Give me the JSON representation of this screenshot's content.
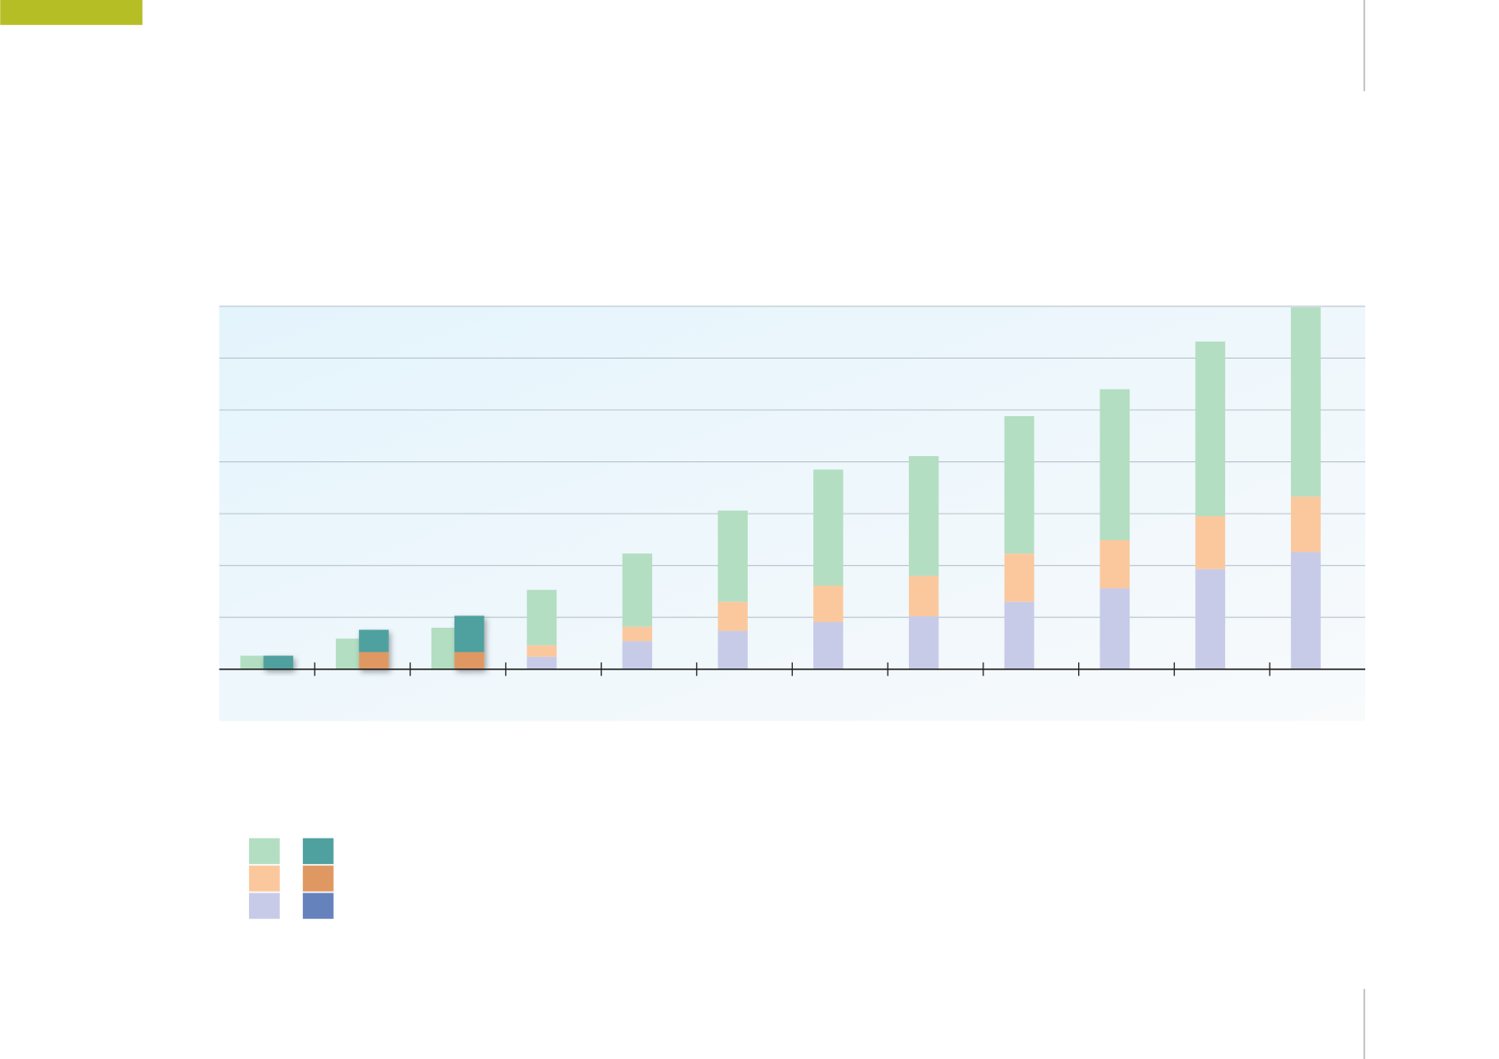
{
  "chart_data": {
    "type": "bar",
    "categories": [
      null,
      null,
      null,
      null,
      null,
      null,
      null,
      null,
      null,
      null,
      null,
      null
    ],
    "series": [
      {
        "color": "#c7cbe8",
        "values": [
          null,
          null,
          null,
          0.24,
          0.54,
          0.74,
          0.91,
          1.02,
          1.3,
          1.56,
          1.93,
          2.26
        ]
      },
      {
        "color": "#fbc89e",
        "values": [
          null,
          null,
          null,
          0.22,
          0.28,
          0.56,
          0.7,
          0.78,
          0.93,
          0.93,
          1.02,
          1.07
        ]
      },
      {
        "color": "#b3dec1",
        "values": [
          0.26,
          0.59,
          0.8,
          1.07,
          1.41,
          1.76,
          2.24,
          2.31,
          2.65,
          2.91,
          3.37,
          3.65
        ]
      },
      {
        "color": "#6682bd",
        "values": [
          null,
          null,
          null,
          null,
          null,
          null,
          null,
          null,
          null,
          null,
          null,
          null
        ]
      },
      {
        "color": "#e09862",
        "values": [
          null,
          0.33,
          0.33,
          null,
          null,
          null,
          null,
          null,
          null,
          null,
          null,
          null
        ]
      },
      {
        "color": "#4fa19f",
        "values": [
          0.26,
          0.43,
          0.7,
          null,
          null,
          null,
          null,
          null,
          null,
          null,
          null,
          null
        ]
      }
    ],
    "ylim": [
      -1,
      7
    ],
    "yticks": [
      0,
      1,
      2,
      3,
      4,
      5,
      6,
      7
    ],
    "grid": true
  }
}
